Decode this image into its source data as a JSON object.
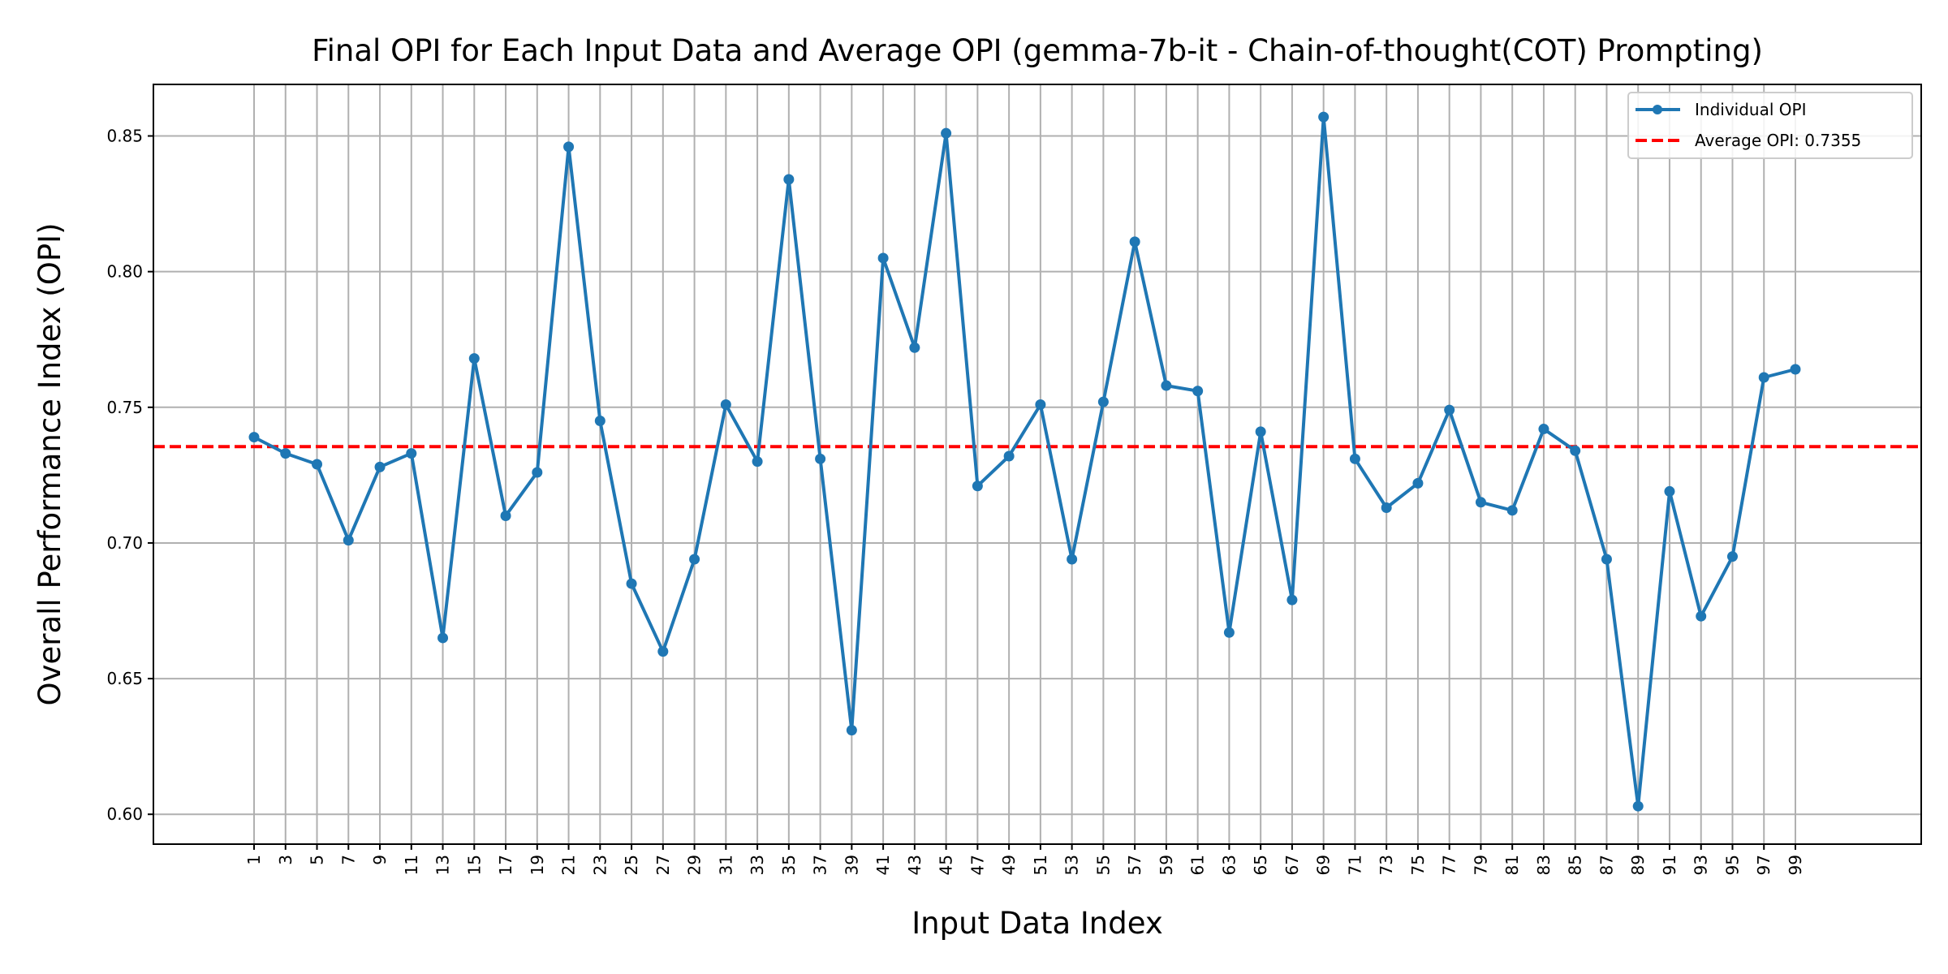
{
  "chart_data": {
    "type": "line",
    "title": "Final OPI for Each Input Data and Average OPI (gemma-7b-it - Chain-of-thought(COT) Prompting)",
    "xlabel": "Input Data Index",
    "ylabel": "Overall Performance Index (OPI)",
    "x": [
      1,
      3,
      5,
      7,
      9,
      11,
      13,
      15,
      17,
      19,
      21,
      23,
      25,
      27,
      29,
      31,
      33,
      35,
      37,
      39,
      41,
      43,
      45,
      47,
      49,
      51,
      53,
      55,
      57,
      59,
      61,
      63,
      65,
      67,
      69,
      71,
      73,
      75,
      77,
      79,
      81,
      83,
      85,
      87,
      89,
      91,
      93,
      95,
      97,
      99
    ],
    "series": [
      {
        "name": "Individual OPI",
        "color": "#1f77b4",
        "values": [
          0.739,
          0.733,
          0.729,
          0.701,
          0.728,
          0.733,
          0.665,
          0.768,
          0.71,
          0.726,
          0.846,
          0.745,
          0.685,
          0.66,
          0.694,
          0.751,
          0.73,
          0.834,
          0.731,
          0.631,
          0.805,
          0.772,
          0.851,
          0.721,
          0.732,
          0.751,
          0.694,
          0.752,
          0.811,
          0.758,
          0.756,
          0.667,
          0.741,
          0.679,
          0.857,
          0.731,
          0.713,
          0.722,
          0.749,
          0.715,
          0.712,
          0.742,
          0.734,
          0.694,
          0.603,
          0.719,
          0.673,
          0.695,
          0.761,
          0.764
        ]
      }
    ],
    "average": {
      "name": "Average OPI: 0.7355",
      "value": 0.7355,
      "color": "#ff0000"
    },
    "xticks": [
      "1",
      "3",
      "5",
      "7",
      "9",
      "11",
      "13",
      "15",
      "17",
      "19",
      "21",
      "23",
      "25",
      "27",
      "29",
      "31",
      "33",
      "35",
      "37",
      "39",
      "41",
      "43",
      "45",
      "47",
      "49",
      "51",
      "53",
      "55",
      "57",
      "59",
      "61",
      "63",
      "65",
      "67",
      "69",
      "71",
      "73",
      "75",
      "77",
      "79",
      "81",
      "83",
      "85",
      "87",
      "89",
      "91",
      "93",
      "95",
      "97",
      "99"
    ],
    "yticks": [
      {
        "value": 0.6,
        "label": "0.60"
      },
      {
        "value": 0.65,
        "label": "0.65"
      },
      {
        "value": 0.7,
        "label": "0.70"
      },
      {
        "value": 0.75,
        "label": "0.75"
      },
      {
        "value": 0.8,
        "label": "0.80"
      },
      {
        "value": 0.85,
        "label": "0.85"
      }
    ],
    "xlim": [
      -5.4,
      107
    ],
    "ylim": [
      0.589,
      0.869
    ],
    "grid": true,
    "legend_position": "top-right"
  }
}
